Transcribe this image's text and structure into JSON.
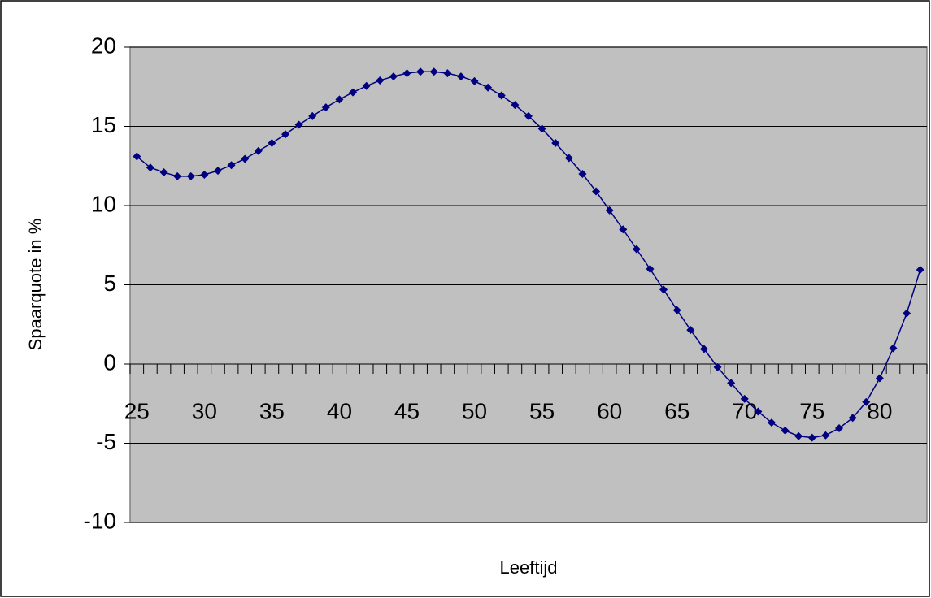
{
  "chart_data": {
    "type": "line",
    "x_label": "Leeftijd",
    "y_label": "Spaarquote in %",
    "categories": [
      "25",
      null,
      null,
      null,
      null,
      "30",
      null,
      null,
      null,
      null,
      "35",
      null,
      null,
      null,
      null,
      "40",
      null,
      null,
      null,
      null,
      "45",
      null,
      null,
      null,
      null,
      "50",
      null,
      null,
      null,
      null,
      "55",
      null,
      null,
      null,
      null,
      "60",
      null,
      null,
      null,
      null,
      "65",
      null,
      null,
      null,
      null,
      "70",
      null,
      null,
      null,
      null,
      "75",
      null,
      null,
      null,
      null,
      "80",
      null,
      null,
      null
    ],
    "series": [
      {
        "name": "Spaarquote",
        "color": "#000080",
        "values": [
          13.1,
          12.4,
          12.1,
          11.85,
          11.85,
          11.95,
          12.2,
          12.55,
          12.95,
          13.45,
          13.95,
          14.5,
          15.1,
          15.65,
          16.2,
          16.7,
          17.15,
          17.55,
          17.9,
          18.15,
          18.35,
          18.45,
          18.45,
          18.35,
          18.15,
          17.85,
          17.45,
          16.95,
          16.35,
          15.65,
          14.85,
          13.95,
          13.0,
          12.0,
          10.9,
          9.7,
          8.5,
          7.25,
          6.0,
          4.7,
          3.4,
          2.15,
          0.95,
          -0.2,
          -1.2,
          -2.2,
          -3.0,
          -3.7,
          -4.2,
          -4.55,
          -4.65,
          -4.5,
          -4.05,
          -3.4,
          -2.4,
          -0.9,
          1.0,
          3.2,
          5.95
        ]
      }
    ],
    "ylim": [
      -10,
      20
    ],
    "yticks": [
      -10,
      -5,
      0,
      5,
      10,
      15,
      20
    ],
    "grid": true,
    "plot_background": "#c0c0c0"
  }
}
